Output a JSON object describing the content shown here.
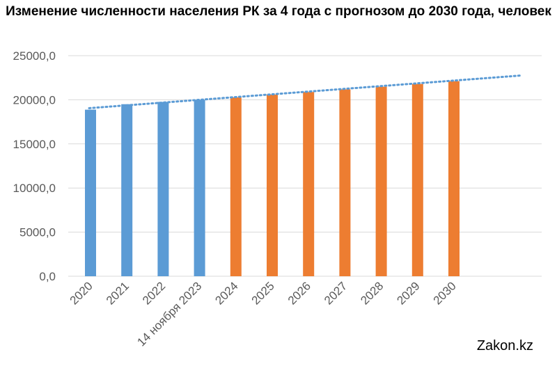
{
  "title": "Изменение численности населения РК за 4 года с прогнозом до 2030 года, человек",
  "watermark": "Zakon.kz",
  "colors": {
    "actual": "#5b9bd5",
    "forecast": "#ed7d31",
    "trend": "#5b9bd5",
    "grid": "#d9d9d9",
    "axis_text": "#595959"
  },
  "chart_data": {
    "type": "bar",
    "title": "Изменение численности населения РК за 4 года с прогнозом до 2030 года, человек",
    "categories": [
      "2020",
      "2021",
      "2022",
      "14 ноября 2023",
      "2024",
      "2025",
      "2026",
      "2027",
      "2028",
      "2029",
      "2030"
    ],
    "values": [
      18880,
      19500,
      19760,
      20000,
      20280,
      20590,
      20880,
      21180,
      21480,
      21790,
      22110
    ],
    "bar_colors": [
      "#5b9bd5",
      "#5b9bd5",
      "#5b9bd5",
      "#5b9bd5",
      "#ed7d31",
      "#ed7d31",
      "#ed7d31",
      "#ed7d31",
      "#ed7d31",
      "#ed7d31",
      "#ed7d31"
    ],
    "yticks": [
      "0,0",
      "5000,0",
      "10000,0",
      "15000,0",
      "20000,0",
      "25000,0"
    ],
    "ylim": [
      0,
      25000
    ],
    "grid": true,
    "trendline": {
      "type": "linear",
      "style": "dotted",
      "start_value": 19050,
      "end_value": 22750,
      "extends_past_last_category": true
    },
    "xlabel": "",
    "ylabel": ""
  }
}
